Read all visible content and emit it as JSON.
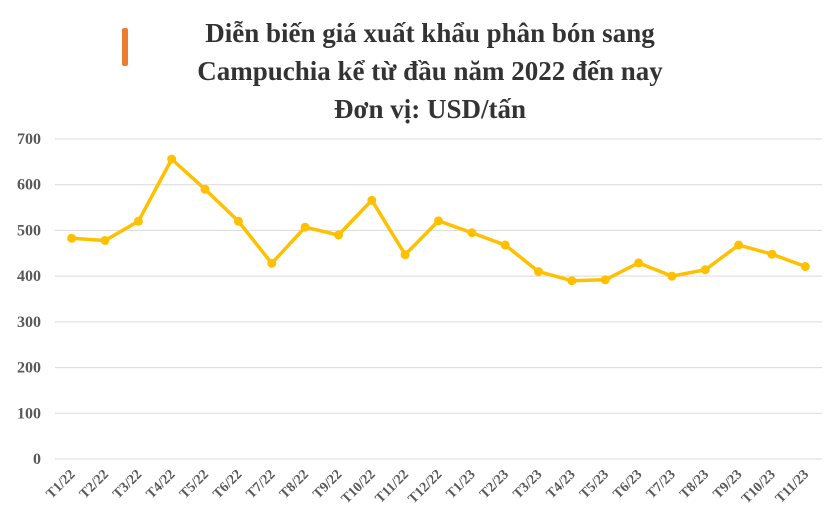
{
  "title_lines": [
    "Diễn biến giá xuất khẩu phân bón sang",
    "Campuchia kể từ đầu năm 2022 đến nay",
    "Đơn vị: USD/tấn"
  ],
  "colors": {
    "accent": "#ED7D31",
    "line": "#FFC000",
    "grid": "#D9D9D9",
    "text": "#333333"
  },
  "chart_data": {
    "type": "line",
    "categories": [
      "T1/22",
      "T2/22",
      "T3/22",
      "T4/22",
      "T5/22",
      "T6/22",
      "T7/22",
      "T8/22",
      "T9/22",
      "T10/22",
      "T11/22",
      "T12/22",
      "T1/23",
      "T2/23",
      "T3/23",
      "T4/23",
      "T5/23",
      "T6/23",
      "T7/23",
      "T8/23",
      "T9/23",
      "T10/23",
      "T11/23"
    ],
    "series": [
      {
        "values": [
          483,
          478,
          520,
          656,
          590,
          520,
          428,
          507,
          490,
          566,
          447,
          521,
          495,
          468,
          410,
          390,
          392,
          429,
          400,
          414,
          468,
          448,
          421
        ]
      }
    ],
    "ylim": [
      0,
      700
    ],
    "yticks": [
      0,
      100,
      200,
      300,
      400,
      500,
      600,
      700
    ],
    "grid": true
  }
}
